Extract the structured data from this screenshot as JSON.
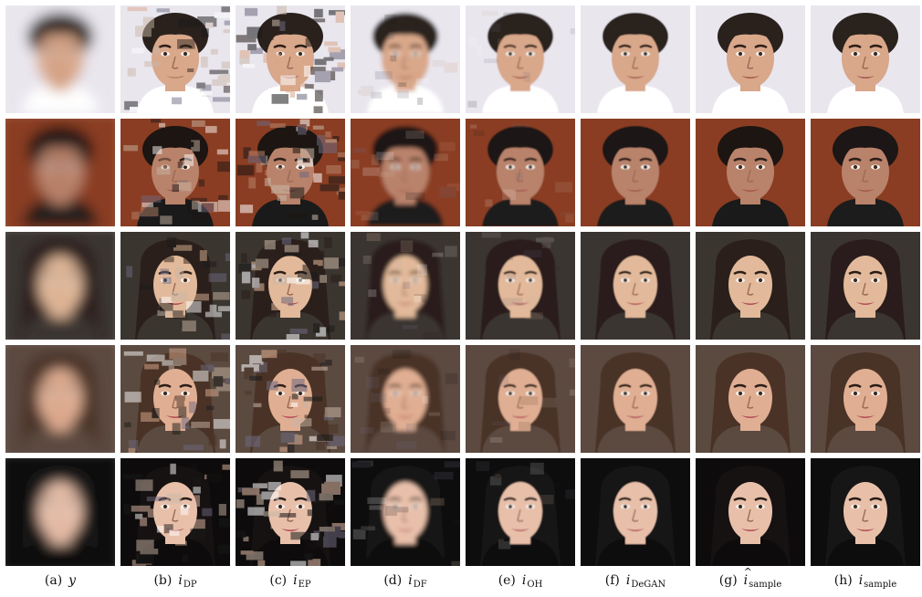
{
  "columns": [
    {
      "letter": "(a)",
      "symbol": "y",
      "sub": "",
      "hat": false
    },
    {
      "letter": "(b)",
      "symbol": "i",
      "sub": "DP",
      "hat": false
    },
    {
      "letter": "(c)",
      "symbol": "i",
      "sub": "EP",
      "hat": false
    },
    {
      "letter": "(d)",
      "symbol": "i",
      "sub": "DF",
      "hat": false
    },
    {
      "letter": "(e)",
      "symbol": "i",
      "sub": "OH",
      "hat": false
    },
    {
      "letter": "(f)",
      "symbol": "i",
      "sub": "DeGAN",
      "hat": false
    },
    {
      "letter": "(g)",
      "symbol": "i",
      "sub": "sample",
      "hat": true
    },
    {
      "letter": "(h)",
      "symbol": "i",
      "sub": "sample",
      "hat": false
    }
  ],
  "rows": [
    {
      "subject": "man-short-dark-hair",
      "bg": "#e9e6ee",
      "skin": "#d9a78a",
      "hair": "#2a211d",
      "shirt": "#ffffff"
    },
    {
      "subject": "man-dark-hair-red-bg",
      "bg": "#8a3d22",
      "skin": "#b9826a",
      "hair": "#1c1512",
      "shirt": "#1a1a1a"
    },
    {
      "subject": "woman-long-dark-hair",
      "bg": "#3b3530",
      "skin": "#e2b99a",
      "hair": "#2a1f1a",
      "shirt": "#3b3530"
    },
    {
      "subject": "woman-brown-hair",
      "bg": "#5b4a40",
      "skin": "#e0ae92",
      "hair": "#4a3326",
      "shirt": "#5b4a40"
    },
    {
      "subject": "woman-dark-background",
      "bg": "#0d0b0b",
      "skin": "#e8c0aa",
      "hair": "#171212",
      "shirt": "#0d0b0b"
    }
  ],
  "methods": [
    "blurred-input",
    "deep-prior",
    "edge-prior",
    "deblur-filter",
    "one-hot",
    "degan",
    "sample-hat",
    "sample"
  ]
}
